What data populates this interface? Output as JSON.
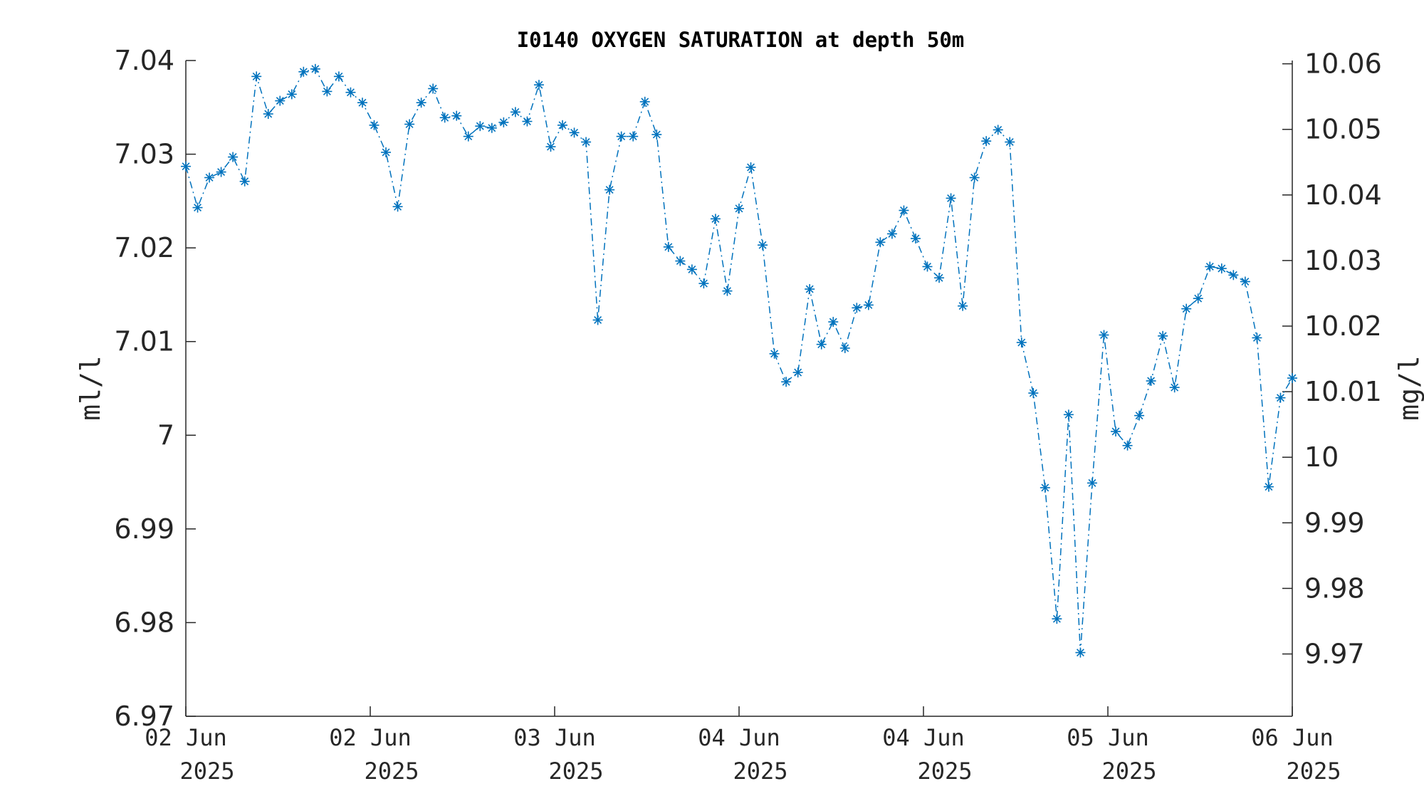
{
  "chart_data": {
    "type": "line",
    "title": "I0140 OXYGEN SATURATION at depth 50m",
    "ylabel_left": "ml/l",
    "ylabel_right": "mg/l",
    "ylim_left": [
      6.97,
      7.04
    ],
    "ylim_right": [
      9.9605,
      10.0605
    ],
    "yticks_left": [
      "6.97",
      "6.98",
      "6.99",
      "7",
      "7.01",
      "7.02",
      "7.03",
      "7.04"
    ],
    "yticks_right": [
      "9.97",
      "9.98",
      "9.99",
      "10",
      "10.01",
      "10.02",
      "10.03",
      "10.04",
      "10.05",
      "10.06"
    ],
    "yticks_right_values": [
      9.97,
      9.98,
      9.99,
      10.0,
      10.01,
      10.02,
      10.03,
      10.04,
      10.05,
      10.06
    ],
    "xticks": [
      {
        "day": "02 Jun",
        "year": "2025"
      },
      {
        "day": "02 Jun",
        "year": "2025"
      },
      {
        "day": "03 Jun",
        "year": "2025"
      },
      {
        "day": "04 Jun",
        "year": "2025"
      },
      {
        "day": "04 Jun",
        "year": "2025"
      },
      {
        "day": "05 Jun",
        "year": "2025"
      },
      {
        "day": "06 Jun",
        "year": "2025"
      }
    ],
    "marker": "asterisk",
    "line_style": "dash-dot",
    "color": "#0072BD",
    "series": [
      {
        "values": [
          7.0287,
          7.0243,
          7.0275,
          7.0281,
          7.0297,
          7.0271,
          7.0383,
          7.0343,
          7.0357,
          7.0364,
          7.0388,
          7.0391,
          7.0367,
          7.0383,
          7.0366,
          7.0355,
          7.0331,
          7.0302,
          7.0244,
          7.0332,
          7.0355,
          7.037,
          7.0339,
          7.0341,
          7.0319,
          7.033,
          7.0328,
          7.0334,
          7.0345,
          7.0335,
          7.0374,
          7.0308,
          7.0331,
          7.0323,
          7.0313,
          7.0123,
          7.0262,
          7.0319,
          7.0319,
          7.0356,
          7.0321,
          7.0201,
          7.0186,
          7.0177,
          7.0162,
          7.0231,
          7.0154,
          7.0242,
          7.0286,
          7.0203,
          7.0087,
          7.0057,
          7.0067,
          7.0156,
          7.0097,
          7.0121,
          7.0093,
          7.0136,
          7.0139,
          7.0206,
          7.0215,
          7.024,
          7.021,
          7.018,
          7.0168,
          7.0253,
          7.0138,
          7.0275,
          7.0314,
          7.0326,
          7.0313,
          7.0099,
          7.0045,
          6.9944,
          6.9804,
          7.0022,
          6.9768,
          6.9949,
          7.0107,
          7.0004,
          6.9989,
          7.0021,
          7.0058,
          7.0106,
          7.0051,
          7.0135,
          7.0146,
          7.018,
          7.0178,
          7.0171,
          7.0164,
          7.0104,
          6.9945,
          7.004,
          7.0061
        ]
      }
    ]
  }
}
